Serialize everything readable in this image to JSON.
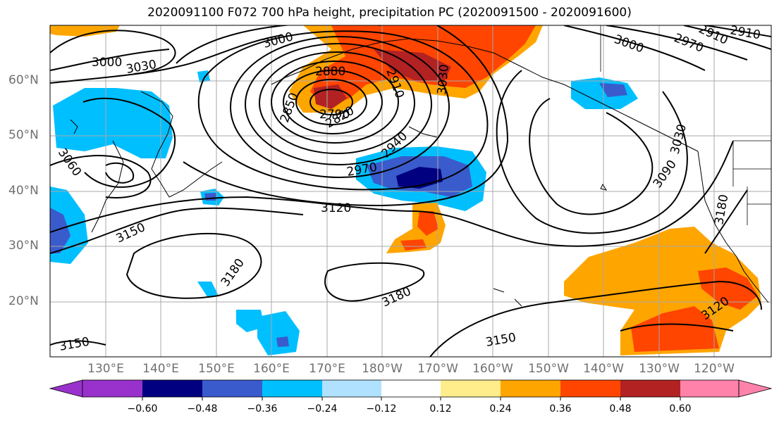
{
  "title": "2020091100 F072 700 hPa height, precipitation PC (2020091500 - 2020091600)",
  "lat_labels": [
    "60°N",
    "50°N",
    "40°N",
    "30°N",
    "20°N"
  ],
  "lon_labels": [
    "130°E",
    "140°E",
    "150°E",
    "160°E",
    "170°E",
    "180°W",
    "170°W",
    "160°W",
    "150°W",
    "140°W",
    "130°W",
    "120°W"
  ],
  "contour_labels": [
    "3000",
    "3030",
    "3000",
    "2880",
    "2910",
    "3030",
    "3000",
    "2970",
    "2910",
    "2910",
    "2850",
    "2790",
    "2820",
    "2940",
    "2970",
    "3060",
    "3120",
    "3150",
    "3180",
    "3180",
    "3150",
    "3150",
    "3090",
    "3030",
    "3180",
    "3120"
  ],
  "colorbar": {
    "ticks": [
      "−0.60",
      "−0.48",
      "−0.36",
      "−0.24",
      "−0.12",
      "0.12",
      "0.24",
      "0.36",
      "0.48",
      "0.60"
    ],
    "colors": [
      "#9932cc",
      "#000080",
      "#3a5bcc",
      "#00bfff",
      "#b0e2ff",
      "#ffffff",
      "#ffec8b",
      "#ffa500",
      "#ff4500",
      "#b22222",
      "#ff82ab"
    ]
  }
}
